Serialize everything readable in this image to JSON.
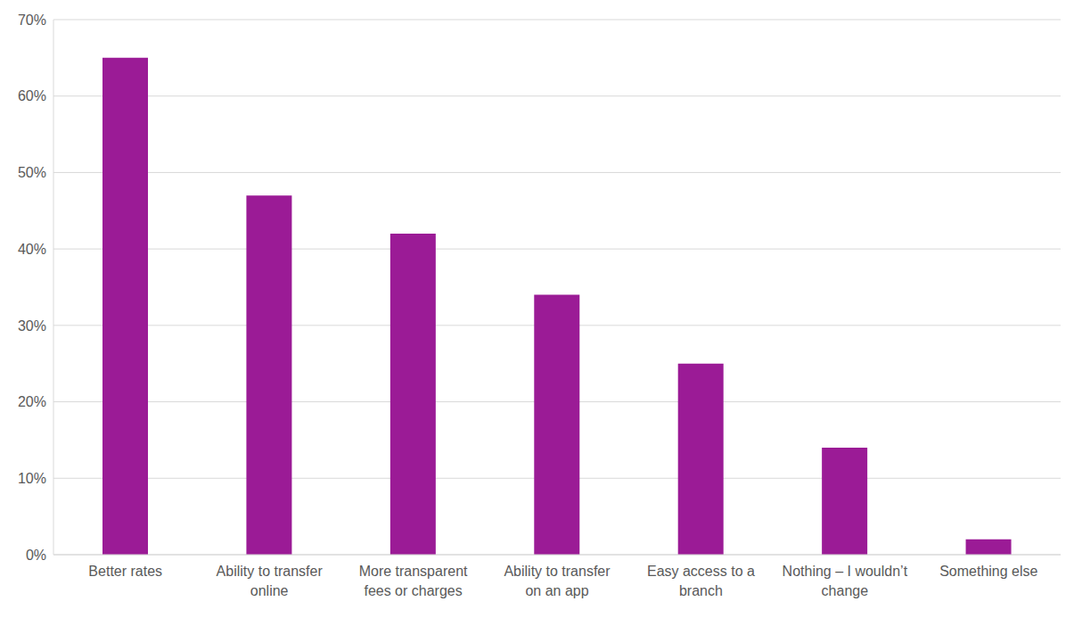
{
  "chart_data": {
    "type": "bar",
    "categories": [
      "Better rates",
      "Ability to transfer online",
      "More transparent fees or charges",
      "Ability to transfer on an app",
      "Easy access to a branch",
      "Nothing – I wouldn’t change",
      "Something else"
    ],
    "values": [
      65,
      47,
      42,
      34,
      25,
      14,
      2
    ],
    "color": "#9b1b96",
    "ylim": [
      0,
      70
    ],
    "yticks": [
      {
        "value": 0,
        "label": "0%"
      },
      {
        "value": 10,
        "label": "10%"
      },
      {
        "value": 20,
        "label": "20%"
      },
      {
        "value": 30,
        "label": "30%"
      },
      {
        "value": 40,
        "label": "40%"
      },
      {
        "value": 50,
        "label": "50%"
      },
      {
        "value": 60,
        "label": "60%"
      },
      {
        "value": 70,
        "label": "70%"
      }
    ],
    "grid": true
  }
}
